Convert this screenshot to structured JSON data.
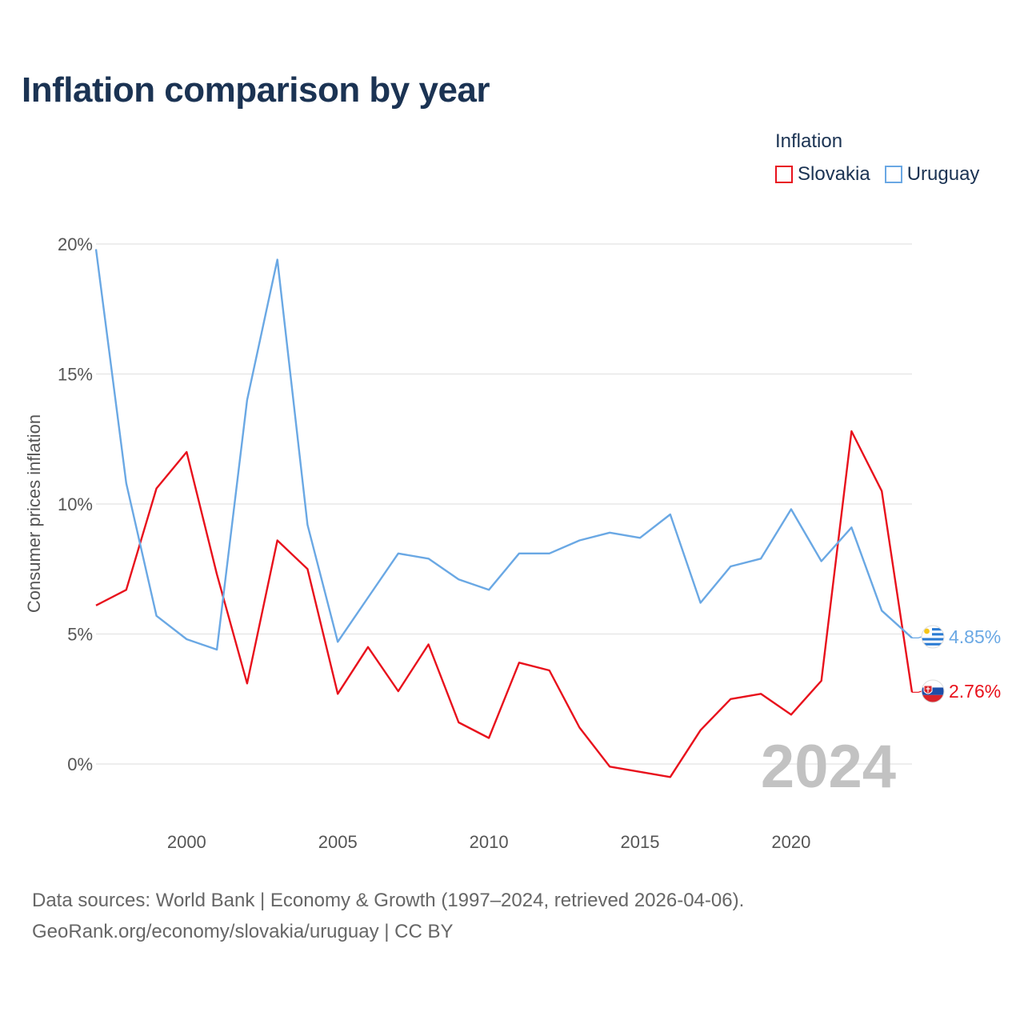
{
  "page": {
    "title": "Inflation comparison by year",
    "legend_title": "Inflation",
    "footer_line1": "Data sources: World Bank | Economy & Growth (1997–2024, retrieved 2026-04-06).",
    "footer_line2": "GeoRank.org/economy/slovakia/uruguay | CC BY"
  },
  "chart_data": {
    "type": "line",
    "title": "Inflation comparison by year",
    "xlabel": "",
    "ylabel": "Consumer prices inflation",
    "x": [
      1997,
      1998,
      1999,
      2000,
      2001,
      2002,
      2003,
      2004,
      2005,
      2006,
      2007,
      2008,
      2009,
      2010,
      2011,
      2012,
      2013,
      2014,
      2015,
      2016,
      2017,
      2018,
      2019,
      2020,
      2021,
      2022,
      2023,
      2024
    ],
    "xlim": [
      1997,
      2024
    ],
    "ylim": [
      -2,
      20
    ],
    "x_ticks": [
      2000,
      2005,
      2010,
      2015,
      2020
    ],
    "y_ticks": [
      0,
      5,
      10,
      15,
      20
    ],
    "y_tick_labels": [
      "0%",
      "5%",
      "10%",
      "15%",
      "20%"
    ],
    "highlight_year": "2024",
    "legend_position": "top-right",
    "series": [
      {
        "name": "Slovakia",
        "color": "#e8111c",
        "end_label": "2.76%",
        "flag": "slovakia-flag",
        "values": [
          6.1,
          6.7,
          10.6,
          12.0,
          7.3,
          3.1,
          8.6,
          7.5,
          2.7,
          4.5,
          2.8,
          4.6,
          1.6,
          1.0,
          3.9,
          3.6,
          1.4,
          -0.1,
          -0.3,
          -0.5,
          1.3,
          2.5,
          2.7,
          1.9,
          3.2,
          12.8,
          10.5,
          2.76
        ]
      },
      {
        "name": "Uruguay",
        "color": "#6aa8e4",
        "end_label": "4.85%",
        "flag": "uruguay-flag",
        "values": [
          19.8,
          10.8,
          5.7,
          4.8,
          4.4,
          14.0,
          19.4,
          9.2,
          4.7,
          6.4,
          8.1,
          7.9,
          7.1,
          6.7,
          8.1,
          8.1,
          8.6,
          8.9,
          8.7,
          9.6,
          6.2,
          7.6,
          7.9,
          9.8,
          7.8,
          9.1,
          5.9,
          4.85
        ]
      }
    ]
  }
}
